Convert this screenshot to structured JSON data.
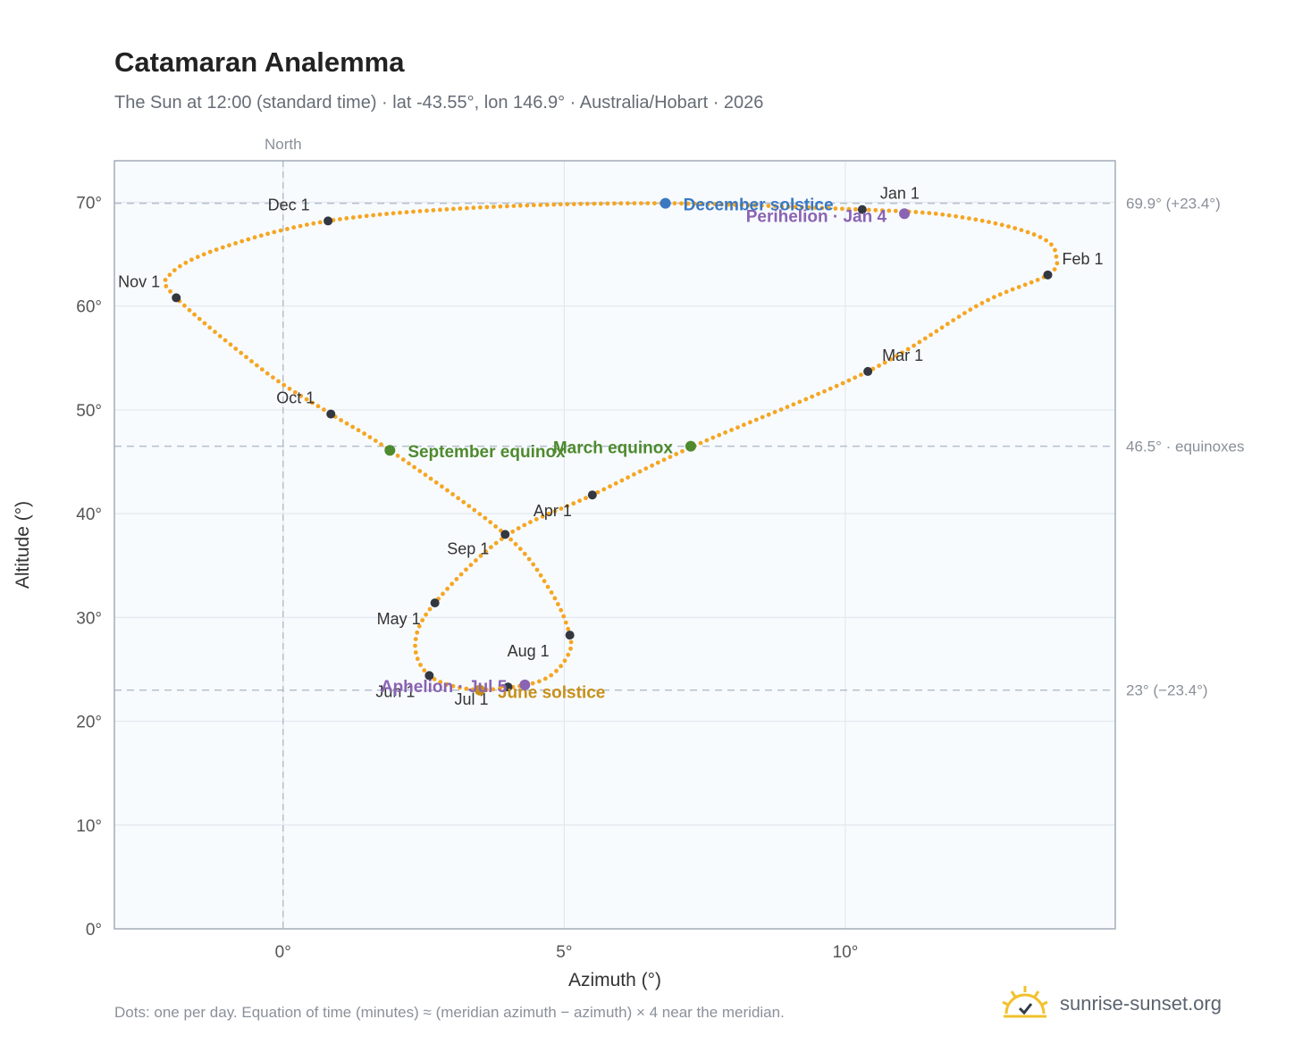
{
  "header": {
    "title": "Catamaran Analemma",
    "subtitle": "The Sun at 12:00 (standard time) · lat -43.55°, lon 146.9° · Australia/Hobart · 2026"
  },
  "footer": {
    "note": "Dots: one per day. Equation of time (minutes) ≈ (meridian azimuth − azimuth) × 4 near the meridian.",
    "brand": "sunrise-sunset.org"
  },
  "colors": {
    "path": "#f5a623",
    "month_marker": "#333840",
    "equinox": "#4e8a2e",
    "december_solstice": "#3a78c2",
    "june_solstice": "#c8901a",
    "apsis": "#8a63b3",
    "plot_bg": "#f8fbfe",
    "grid": "#e2e8ef",
    "reference_line": "#b4c0cc"
  },
  "chart_data": {
    "type": "scatter",
    "title": "Catamaran Analemma",
    "xlabel": "Azimuth (°)",
    "ylabel": "Altitude (°)",
    "xlim": [
      -3.0,
      14.8
    ],
    "ylim": [
      0,
      74
    ],
    "xticks": [
      0,
      5,
      10
    ],
    "xtick_labels": [
      "0°",
      "5°",
      "10°"
    ],
    "yticks": [
      0,
      10,
      20,
      30,
      40,
      50,
      60,
      70
    ],
    "ytick_labels": [
      "0°",
      "10°",
      "20°",
      "30°",
      "40°",
      "50°",
      "60°",
      "70°"
    ],
    "grid": true,
    "meridian_line": {
      "azimuth": 0,
      "label": "North"
    },
    "reference_lines": [
      {
        "altitude": 69.9,
        "label": "69.9° (+23.4°)"
      },
      {
        "altitude": 46.5,
        "label": "46.5° · equinoxes"
      },
      {
        "altitude": 23.0,
        "label": "23° (−23.4°)"
      }
    ],
    "series": [
      {
        "style": "daily-dots",
        "points": [
          [
            10.3,
            69.3
          ],
          [
            11.6,
            68.9
          ],
          [
            12.8,
            67.8
          ],
          [
            13.55,
            66.4
          ],
          [
            13.75,
            64.8
          ],
          [
            13.6,
            63.0
          ],
          [
            12.4,
            60.2
          ],
          [
            10.4,
            53.7
          ],
          [
            7.3,
            46.5
          ],
          [
            5.5,
            41.8
          ],
          [
            3.95,
            37.8
          ],
          [
            2.7,
            31.4
          ],
          [
            2.35,
            27.5
          ],
          [
            2.6,
            24.4
          ],
          [
            3.3,
            23.1
          ],
          [
            4.1,
            23.3
          ],
          [
            4.7,
            24.2
          ],
          [
            5.05,
            26.2
          ],
          [
            5.1,
            28.3
          ],
          [
            4.75,
            32.6
          ],
          [
            3.95,
            38.0
          ],
          [
            1.9,
            46.1
          ],
          [
            0.85,
            49.6
          ],
          [
            -0.3,
            53.6
          ],
          [
            -1.9,
            60.8
          ],
          [
            -2.0,
            63.1
          ],
          [
            -1.1,
            65.6
          ],
          [
            0.8,
            68.2
          ],
          [
            3.5,
            69.5
          ],
          [
            6.8,
            69.9
          ],
          [
            10.3,
            69.3
          ]
        ]
      }
    ],
    "month_markers": [
      {
        "label": "Jan 1",
        "azimuth": 10.3,
        "altitude": 69.3
      },
      {
        "label": "Feb 1",
        "azimuth": 13.6,
        "altitude": 63.0
      },
      {
        "label": "Mar 1",
        "azimuth": 10.4,
        "altitude": 53.7
      },
      {
        "label": "Apr 1",
        "azimuth": 5.5,
        "altitude": 41.8
      },
      {
        "label": "May 1",
        "azimuth": 2.7,
        "altitude": 31.4
      },
      {
        "label": "Jun 1",
        "azimuth": 2.6,
        "altitude": 24.4
      },
      {
        "label": "Jul 1",
        "azimuth": 4.0,
        "altitude": 23.3
      },
      {
        "label": "Aug 1",
        "azimuth": 5.1,
        "altitude": 28.3
      },
      {
        "label": "Sep 1",
        "azimuth": 3.95,
        "altitude": 38.0
      },
      {
        "label": "Oct 1",
        "azimuth": 0.85,
        "altitude": 49.6
      },
      {
        "label": "Nov 1",
        "azimuth": -1.9,
        "altitude": 60.8
      },
      {
        "label": "Dec 1",
        "azimuth": 0.8,
        "altitude": 68.2
      }
    ],
    "events": [
      {
        "label": "December solstice",
        "azimuth": 6.8,
        "altitude": 69.9,
        "kind": "december_solstice"
      },
      {
        "label": "Perihelion · Jan 4",
        "azimuth": 11.05,
        "altitude": 68.9,
        "kind": "apsis"
      },
      {
        "label": "March equinox",
        "azimuth": 7.25,
        "altitude": 46.5,
        "kind": "equinox"
      },
      {
        "label": "September equinox",
        "azimuth": 1.9,
        "altitude": 46.1,
        "kind": "equinox"
      },
      {
        "label": "June solstice",
        "azimuth": 3.5,
        "altitude": 23.0,
        "kind": "june_solstice"
      },
      {
        "label": "Aphelion · Jul 5",
        "azimuth": 4.3,
        "altitude": 23.5,
        "kind": "apsis"
      }
    ]
  }
}
